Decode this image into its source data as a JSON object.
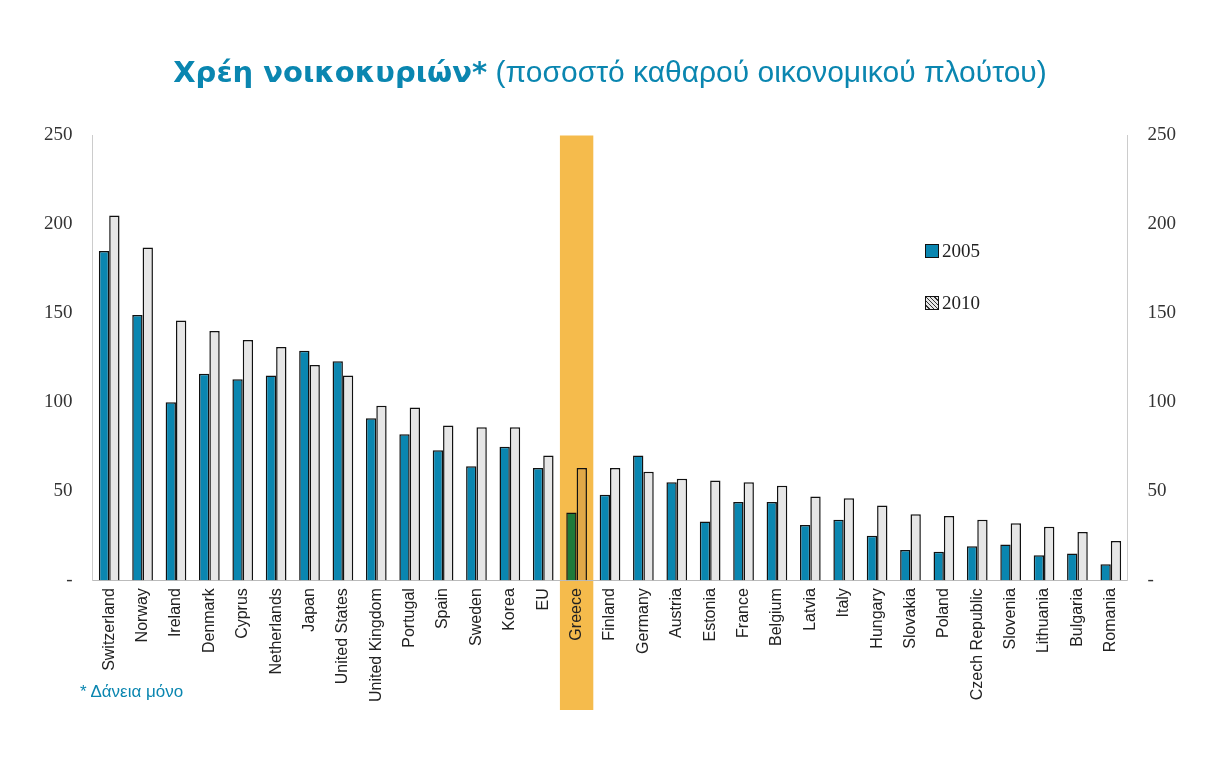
{
  "chart_data": {
    "type": "bar",
    "title": "Χρέη νοικοκυριών*",
    "subtitle": "(ποσοστό καθαρού οικονομικού πλούτου)",
    "categories": [
      "Switzerland",
      "Norway",
      "Ireland",
      "Denmark",
      "Cyprus",
      "Netherlands",
      "Japan",
      "United States",
      "United Kingdom",
      "Portugal",
      "Spain",
      "Sweden",
      "Korea",
      "EU",
      "Greece",
      "Finland",
      "Germany",
      "Austria",
      "Estonia",
      "France",
      "Belgium",
      "Latvia",
      "Italy",
      "Hungary",
      "Slovakia",
      "Poland",
      "Czech Republic",
      "Slovenia",
      "Lithuania",
      "Bulgaria",
      "Romania"
    ],
    "series": [
      {
        "name": "2005",
        "color": "#0a86b0",
        "colors": [
          "#0a86b0",
          "#0a86b0",
          "#0a86b0",
          "#0a86b0",
          "#0a86b0",
          "#0a86b0",
          "#0a86b0",
          "#0a86b0",
          "#0a86b0",
          "#0a86b0",
          "#0a86b0",
          "#0a86b0",
          "#0a86b0",
          "#0a86b0",
          "#1e7a3a",
          "#0a86b0",
          "#0a86b0",
          "#0a86b0",
          "#0a86b0",
          "#0a86b0",
          "#0a86b0",
          "#0a86b0",
          "#0a86b0",
          "#0a86b0",
          "#0a86b0",
          "#0a86b0",
          "#0a86b0",
          "#0a86b0",
          "#0a86b0",
          "#0a86b0",
          "#0a86b0"
        ],
        "values": [
          185,
          149,
          100,
          116,
          113,
          115,
          129,
          123,
          91,
          82,
          73,
          64,
          75,
          63,
          38,
          48,
          70,
          55,
          33,
          44,
          44,
          31,
          34,
          25,
          17,
          16,
          19,
          20,
          14,
          15,
          9
        ]
      },
      {
        "name": "2010",
        "color": "#e6e6e6",
        "colors": [
          "#e6e6e6",
          "#e6e6e6",
          "#e6e6e6",
          "#e6e6e6",
          "#e6e6e6",
          "#e6e6e6",
          "#e6e6e6",
          "#e6e6e6",
          "#e6e6e6",
          "#e6e6e6",
          "#e6e6e6",
          "#e6e6e6",
          "#e6e6e6",
          "#e6e6e6",
          "#e0a848",
          "#e6e6e6",
          "#e6e6e6",
          "#e6e6e6",
          "#e6e6e6",
          "#e6e6e6",
          "#e6e6e6",
          "#e6e6e6",
          "#e6e6e6",
          "#e6e6e6",
          "#e6e6e6",
          "#e6e6e6",
          "#e6e6e6",
          "#e6e6e6",
          "#e6e6e6",
          "#e6e6e6",
          "#e6e6e6"
        ],
        "values": [
          205,
          187,
          146,
          140,
          135,
          131,
          121,
          115,
          98,
          97,
          87,
          86,
          86,
          70,
          63,
          63,
          61,
          57,
          56,
          55,
          53,
          47,
          46,
          42,
          37,
          36,
          34,
          32,
          30,
          27,
          22
        ]
      }
    ],
    "ylim": [
      0,
      250
    ],
    "yticks": [
      {
        "value": 0,
        "label": "-"
      },
      50,
      100,
      150,
      200,
      250
    ],
    "y2lim": [
      0,
      250
    ],
    "y2ticks": [
      {
        "value": 0,
        "label": "-"
      },
      50,
      100,
      150,
      200,
      250
    ],
    "bands": [
      {
        "axis": "x",
        "from": "Greece",
        "to": "Greece",
        "color": "#f5bb4c"
      }
    ],
    "legend": "right",
    "grid": false,
    "annotations": [
      "* Δάνεια μόνο"
    ]
  }
}
